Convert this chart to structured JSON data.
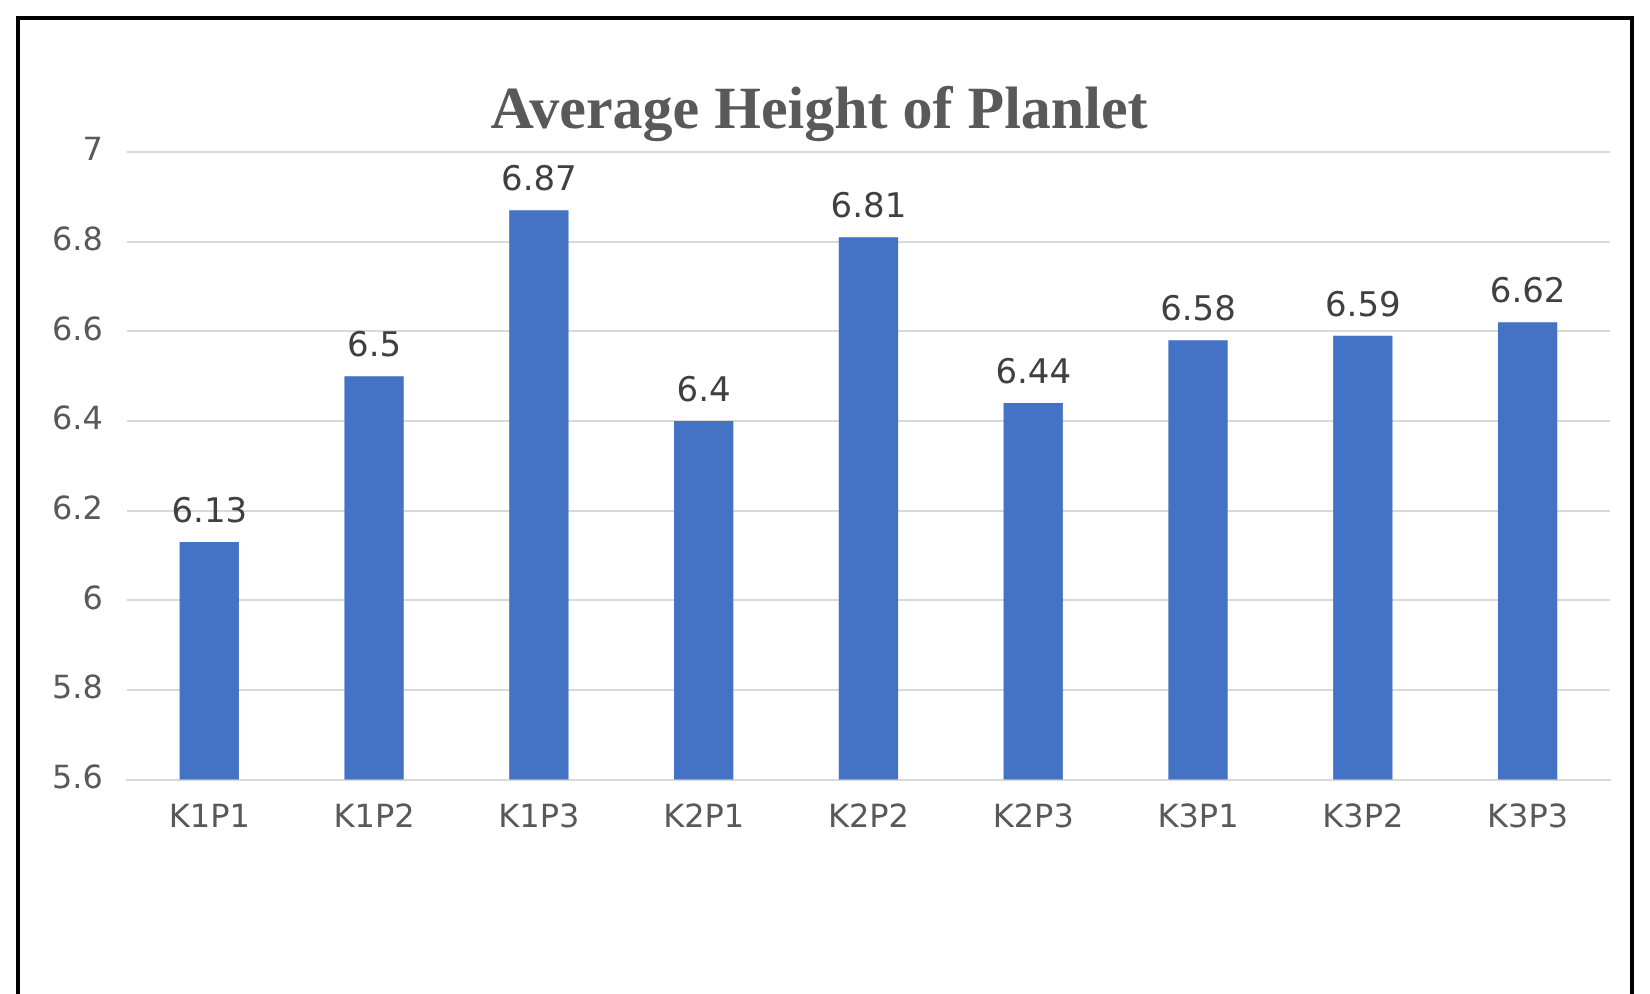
{
  "chart_data": {
    "type": "bar",
    "title": "Average Height of Planlet",
    "categories": [
      "K1P1",
      "K1P2",
      "K1P3",
      "K2P1",
      "K2P2",
      "K2P3",
      "K3P1",
      "K3P2",
      "K3P3"
    ],
    "values": [
      6.13,
      6.5,
      6.87,
      6.4,
      6.81,
      6.44,
      6.58,
      6.59,
      6.62
    ],
    "color": "#4472c4",
    "ylim": [
      5.6,
      7
    ],
    "yticks": [
      5.6,
      5.8,
      6,
      6.2,
      6.4,
      6.6,
      6.8,
      7
    ],
    "grid": "y",
    "data_labels": true
  }
}
